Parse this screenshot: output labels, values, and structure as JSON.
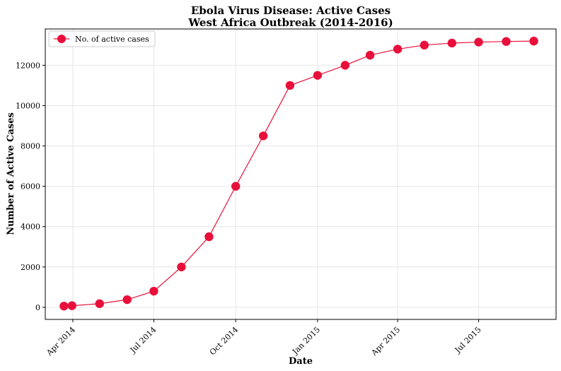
{
  "chart_data": {
    "type": "line",
    "title": "Ebola Virus Disease: Active Cases",
    "subtitle": "West Africa Outbreak (2014-2016)",
    "xlabel": "Date",
    "ylabel": "Number of Active Cases",
    "xlim": [
      "2014-03-01",
      "2015-09-26"
    ],
    "ylim": [
      -600,
      13800
    ],
    "x_ticks": [
      {
        "date": "2014-04-01",
        "label": "Apr 2014"
      },
      {
        "date": "2014-07-01",
        "label": "Jul 2014"
      },
      {
        "date": "2014-10-01",
        "label": "Oct 2014"
      },
      {
        "date": "2015-01-01",
        "label": "Jan 2015"
      },
      {
        "date": "2015-04-01",
        "label": "Apr 2015"
      },
      {
        "date": "2015-07-01",
        "label": "Jul 2015"
      }
    ],
    "y_ticks": [
      {
        "value": 0,
        "label": "0"
      },
      {
        "value": 2000,
        "label": "2000"
      },
      {
        "value": 4000,
        "label": "4000"
      },
      {
        "value": 6000,
        "label": "6000"
      },
      {
        "value": 8000,
        "label": "8000"
      },
      {
        "value": 10000,
        "label": "10000"
      },
      {
        "value": 12000,
        "label": "12000"
      }
    ],
    "grid": true,
    "legend_position": "top-left",
    "series": [
      {
        "name": "No. of active cases",
        "color": "#e8103a",
        "marker": "circle",
        "points": [
          {
            "x": "2014-03-22",
            "y": 60
          },
          {
            "x": "2014-03-31",
            "y": 80
          },
          {
            "x": "2014-05-01",
            "y": 180
          },
          {
            "x": "2014-06-01",
            "y": 380
          },
          {
            "x": "2014-07-01",
            "y": 800
          },
          {
            "x": "2014-08-01",
            "y": 2000
          },
          {
            "x": "2014-09-01",
            "y": 3500
          },
          {
            "x": "2014-10-01",
            "y": 6000
          },
          {
            "x": "2014-11-01",
            "y": 8500
          },
          {
            "x": "2014-12-01",
            "y": 11000
          },
          {
            "x": "2015-01-01",
            "y": 11500
          },
          {
            "x": "2015-02-01",
            "y": 12000
          },
          {
            "x": "2015-03-01",
            "y": 12500
          },
          {
            "x": "2015-04-01",
            "y": 12800
          },
          {
            "x": "2015-05-01",
            "y": 13000
          },
          {
            "x": "2015-06-01",
            "y": 13100
          },
          {
            "x": "2015-07-01",
            "y": 13150
          },
          {
            "x": "2015-08-01",
            "y": 13180
          },
          {
            "x": "2015-09-01",
            "y": 13200
          }
        ]
      }
    ]
  }
}
